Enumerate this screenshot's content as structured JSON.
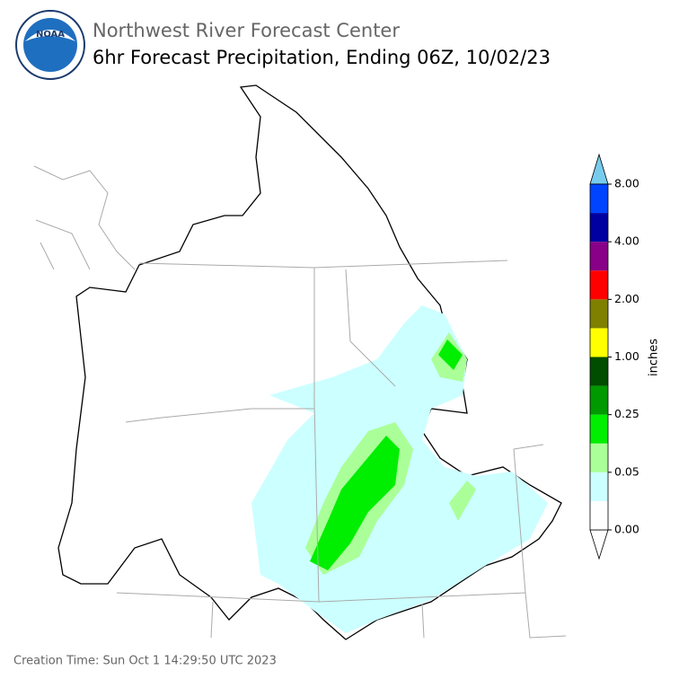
{
  "header": {
    "agency": "NOAA",
    "title": "Northwest River Forecast Center",
    "subtitle": "6hr Forecast Precipitation, Ending 06Z, 10/02/23"
  },
  "colorbar": {
    "label": "inches",
    "ticks": [
      "0.00",
      "0.05",
      "0.25",
      "1.00",
      "2.00",
      "4.00",
      "8.00"
    ],
    "under_color": "#ffffff",
    "over_color": "#77ccee",
    "colors": [
      "#ffffff",
      "#ccffff",
      "#aaff99",
      "#00ee00",
      "#009900",
      "#004d00",
      "#ffff00",
      "#808000",
      "#ff0000",
      "#880088",
      "#0000a0",
      "#0044ff"
    ]
  },
  "footer": {
    "creation_time": "Creation Time: Sun Oct 1 14:29:50 UTC 2023"
  }
}
